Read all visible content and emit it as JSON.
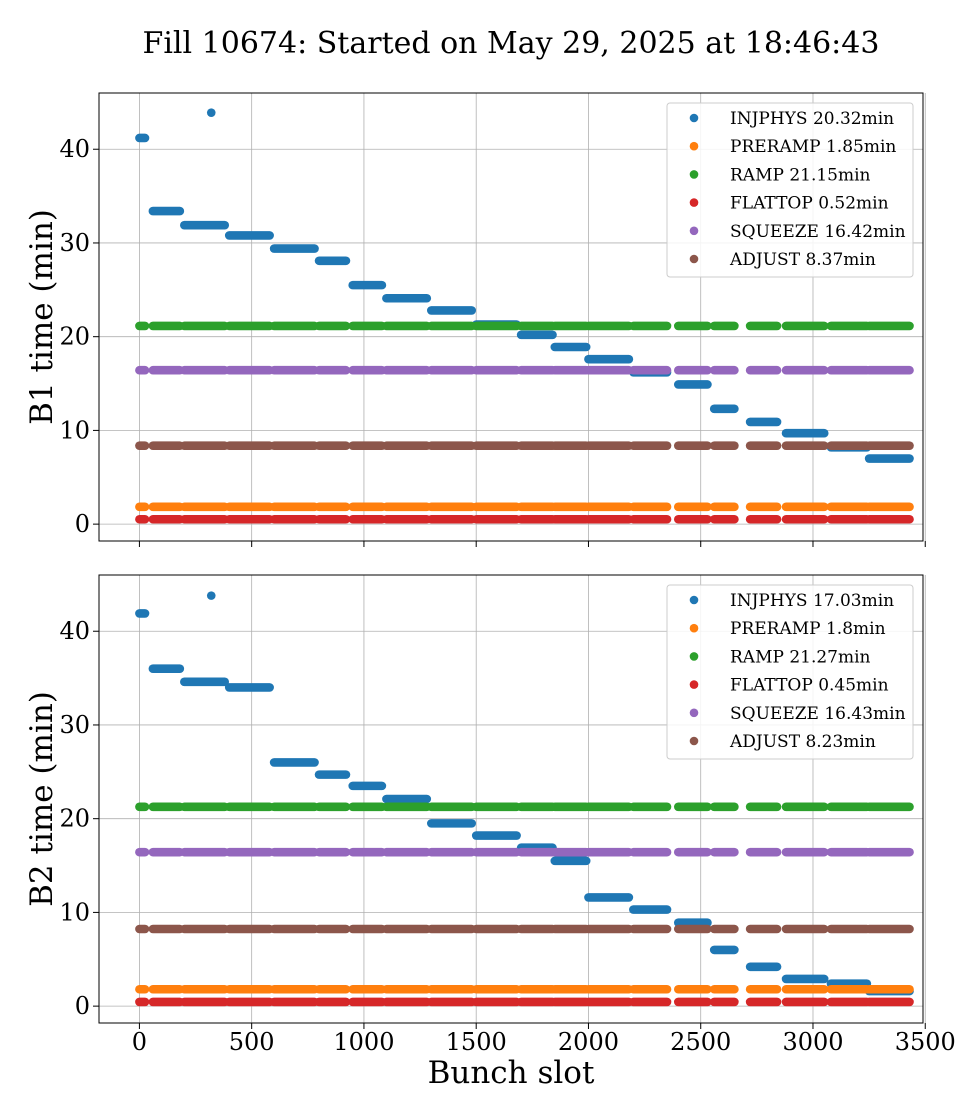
{
  "figure": {
    "title": "Fill 10674: Started on May 29, 2025 at 18:46:43",
    "xlabel": "Bunch slot"
  },
  "chart_data": [
    {
      "type": "scatter",
      "ylabel": "B1 time (min)",
      "xlim": [
        -180,
        3490
      ],
      "ylim": [
        -1.8,
        46
      ],
      "xticks": [
        0,
        500,
        1000,
        1500,
        2000,
        2500,
        3000,
        3500
      ],
      "yticks": [
        0,
        10,
        20,
        30,
        40
      ],
      "grid": true,
      "legend_position": "upper right",
      "series": [
        {
          "name": "INJPHYS 20.32min",
          "color": "#1f77b4",
          "segments": [
            [
              0,
              25,
              41.2
            ],
            [
              60,
              180,
              33.4
            ],
            [
              200,
              380,
              31.9
            ],
            [
              400,
              580,
              30.8
            ],
            [
              600,
              780,
              29.4
            ],
            [
              800,
              920,
              28.1
            ],
            [
              950,
              1080,
              25.5
            ],
            [
              1100,
              1280,
              24.1
            ],
            [
              1300,
              1480,
              22.8
            ],
            [
              1500,
              1680,
              21.3
            ],
            [
              1700,
              1840,
              20.2
            ],
            [
              1850,
              1990,
              18.9
            ],
            [
              2000,
              2180,
              17.6
            ],
            [
              2200,
              2350,
              16.2
            ],
            [
              2400,
              2530,
              14.9
            ],
            [
              2560,
              2650,
              12.3
            ],
            [
              2720,
              2840,
              10.9
            ],
            [
              2880,
              3050,
              9.7
            ],
            [
              3080,
              3240,
              8.2
            ],
            [
              3250,
              3430,
              7.0
            ]
          ],
          "points": [
            [
              320,
              43.9
            ]
          ]
        },
        {
          "name": "PRERAMP 1.85min",
          "color": "#ff7f0e",
          "level": 1.85
        },
        {
          "name": "RAMP 21.15min",
          "color": "#2ca02c",
          "level": 21.15
        },
        {
          "name": "FLATTOP 0.52min",
          "color": "#d62728",
          "level": 0.52
        },
        {
          "name": "SQUEEZE 16.42min",
          "color": "#9467bd",
          "level": 16.42
        },
        {
          "name": "ADJUST 8.37min",
          "color": "#8c564b",
          "level": 8.37
        }
      ]
    },
    {
      "type": "scatter",
      "ylabel": "B2 time (min)",
      "xlim": [
        -180,
        3490
      ],
      "ylim": [
        -1.8,
        46
      ],
      "xticks": [
        0,
        500,
        1000,
        1500,
        2000,
        2500,
        3000,
        3500
      ],
      "yticks": [
        0,
        10,
        20,
        30,
        40
      ],
      "grid": true,
      "legend_position": "upper right",
      "series": [
        {
          "name": "INJPHYS 17.03min",
          "color": "#1f77b4",
          "segments": [
            [
              0,
              25,
              41.9
            ],
            [
              60,
              180,
              36.0
            ],
            [
              200,
              380,
              34.6
            ],
            [
              400,
              580,
              34.0
            ],
            [
              600,
              780,
              26.0
            ],
            [
              800,
              920,
              24.7
            ],
            [
              950,
              1080,
              23.5
            ],
            [
              1100,
              1280,
              22.1
            ],
            [
              1300,
              1480,
              19.5
            ],
            [
              1500,
              1680,
              18.2
            ],
            [
              1700,
              1840,
              16.9
            ],
            [
              1850,
              1990,
              15.5
            ],
            [
              2000,
              2180,
              11.6
            ],
            [
              2200,
              2350,
              10.3
            ],
            [
              2400,
              2530,
              8.9
            ],
            [
              2560,
              2650,
              6.0
            ],
            [
              2720,
              2840,
              4.2
            ],
            [
              2880,
              3050,
              2.9
            ],
            [
              3080,
              3240,
              2.4
            ],
            [
              3250,
              3430,
              1.6
            ]
          ],
          "points": [
            [
              320,
              43.8
            ]
          ]
        },
        {
          "name": "PRERAMP 1.8min",
          "color": "#ff7f0e",
          "level": 1.8
        },
        {
          "name": "RAMP 21.27min",
          "color": "#2ca02c",
          "level": 21.27
        },
        {
          "name": "FLATTOP 0.45min",
          "color": "#d62728",
          "level": 0.45
        },
        {
          "name": "SQUEEZE 16.43min",
          "color": "#9467bd",
          "level": 16.43
        },
        {
          "name": "ADJUST 8.23min",
          "color": "#8c564b",
          "level": 8.23
        }
      ]
    }
  ],
  "train_slots": [
    [
      0,
      25
    ],
    [
      60,
      180
    ],
    [
      200,
      380
    ],
    [
      400,
      580
    ],
    [
      600,
      780
    ],
    [
      800,
      920
    ],
    [
      950,
      1080
    ],
    [
      1100,
      1280
    ],
    [
      1300,
      1480
    ],
    [
      1500,
      1680
    ],
    [
      1700,
      1840
    ],
    [
      1850,
      1990
    ],
    [
      2000,
      2180
    ],
    [
      2200,
      2350
    ],
    [
      2400,
      2530
    ],
    [
      2560,
      2650
    ],
    [
      2720,
      2840
    ],
    [
      2880,
      3050
    ],
    [
      3080,
      3240
    ],
    [
      3250,
      3430
    ]
  ]
}
